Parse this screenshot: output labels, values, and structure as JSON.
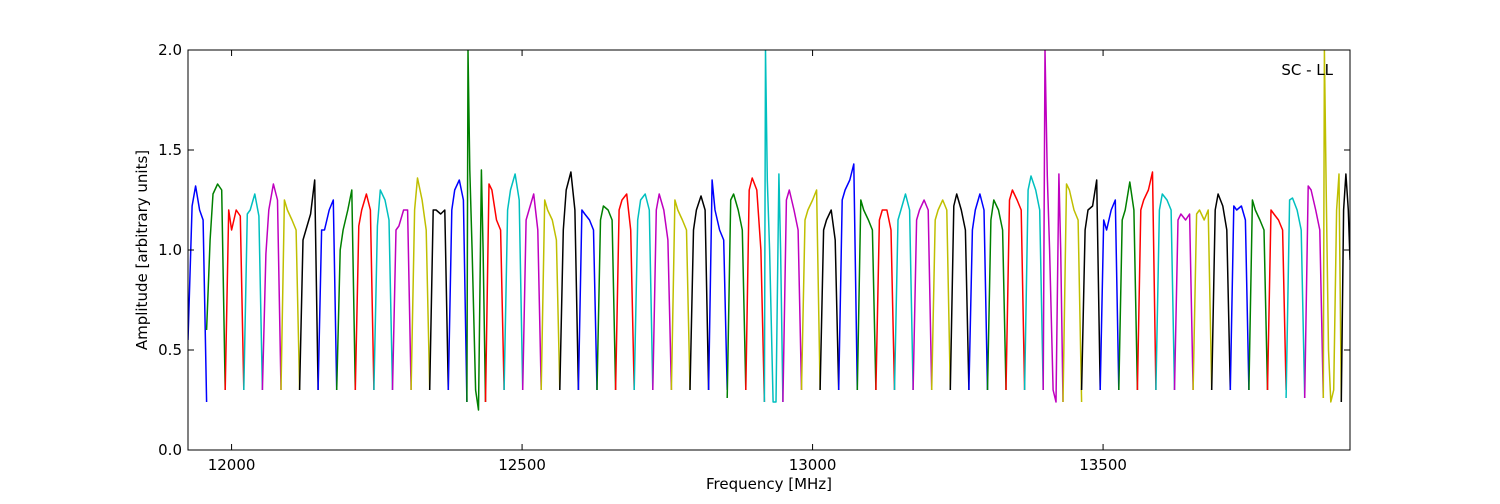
{
  "chart_data": {
    "type": "line",
    "title": "",
    "xlabel": "Frequency [MHz]",
    "ylabel": "Amplitude [arbitrary units]",
    "annotation": "SC - LL",
    "xlim": [
      11925,
      13925
    ],
    "ylim": [
      0.0,
      2.0
    ],
    "xticks": [
      12000,
      12500,
      13000,
      13500
    ],
    "xtick_labels": [
      "12000",
      "12500",
      "13000",
      "13500"
    ],
    "yticks": [
      0.0,
      0.5,
      1.0,
      1.5,
      2.0
    ],
    "ytick_labels": [
      "0.0",
      "0.5",
      "1.0",
      "1.5",
      "2.0"
    ],
    "grid": false,
    "legend": "none",
    "color_cycle": [
      "#0000ff",
      "#008000",
      "#ff0000",
      "#00bfbf",
      "#bf00bf",
      "#bfbf00",
      "#000000"
    ],
    "channel_width_mhz": 32,
    "series": [
      {
        "x": [
          11925,
          11932,
          11938,
          11945,
          11951,
          11957
        ],
        "y": [
          0.55,
          1.22,
          1.32,
          1.2,
          1.15,
          0.24
        ]
      },
      {
        "x": [
          11957,
          11963,
          11968,
          11976,
          11983,
          11989
        ],
        "y": [
          0.6,
          1.05,
          1.28,
          1.33,
          1.3,
          0.3
        ]
      },
      {
        "x": [
          11989,
          11995,
          12000,
          12008,
          12015,
          12021
        ],
        "y": [
          0.3,
          1.2,
          1.1,
          1.2,
          1.17,
          0.3
        ]
      },
      {
        "x": [
          12021,
          12027,
          12032,
          12040,
          12047,
          12053
        ],
        "y": [
          0.3,
          1.18,
          1.2,
          1.28,
          1.17,
          0.3
        ]
      },
      {
        "x": [
          12053,
          12059,
          12064,
          12072,
          12079,
          12085
        ],
        "y": [
          0.3,
          0.98,
          1.2,
          1.33,
          1.25,
          0.3
        ]
      },
      {
        "x": [
          12085,
          12091,
          12096,
          12104,
          12111,
          12117
        ],
        "y": [
          0.3,
          1.25,
          1.2,
          1.15,
          1.1,
          0.3
        ]
      },
      {
        "x": [
          12117,
          12123,
          12128,
          12136,
          12143,
          12149
        ],
        "y": [
          0.3,
          1.05,
          1.1,
          1.18,
          1.35,
          0.3
        ]
      },
      {
        "x": [
          12149,
          12155,
          12160,
          12168,
          12175,
          12181
        ],
        "y": [
          0.3,
          1.1,
          1.1,
          1.2,
          1.25,
          0.3
        ]
      },
      {
        "x": [
          12181,
          12187,
          12192,
          12200,
          12207,
          12213
        ],
        "y": [
          0.3,
          1.0,
          1.1,
          1.2,
          1.3,
          0.3
        ]
      },
      {
        "x": [
          12213,
          12219,
          12224,
          12232,
          12239,
          12245
        ],
        "y": [
          0.3,
          1.12,
          1.2,
          1.28,
          1.2,
          0.3
        ]
      },
      {
        "x": [
          12245,
          12251,
          12256,
          12264,
          12271,
          12277
        ],
        "y": [
          0.3,
          1.12,
          1.3,
          1.25,
          1.15,
          0.3
        ]
      },
      {
        "x": [
          12277,
          12283,
          12288,
          12296,
          12303,
          12309
        ],
        "y": [
          0.3,
          1.1,
          1.12,
          1.2,
          1.2,
          0.3
        ]
      },
      {
        "x": [
          12309,
          12315,
          12320,
          12328,
          12335,
          12341
        ],
        "y": [
          0.3,
          1.2,
          1.36,
          1.25,
          1.1,
          0.3
        ]
      },
      {
        "x": [
          12341,
          12347,
          12352,
          12360,
          12367,
          12373
        ],
        "y": [
          0.3,
          1.2,
          1.2,
          1.18,
          1.2,
          0.3
        ]
      },
      {
        "x": [
          12373,
          12379,
          12384,
          12392,
          12399,
          12405
        ],
        "y": [
          0.3,
          1.2,
          1.3,
          1.35,
          1.25,
          0.24
        ]
      },
      {
        "x": [
          12405,
          12407,
          12410,
          12414,
          12420,
          12425,
          12430,
          12433,
          12437
        ],
        "y": [
          0.24,
          2.0,
          1.4,
          1.0,
          0.3,
          0.2,
          1.4,
          1.0,
          0.24
        ]
      },
      {
        "x": [
          12437,
          12443,
          12448,
          12456,
          12463,
          12469
        ],
        "y": [
          0.24,
          1.33,
          1.3,
          1.15,
          1.1,
          0.3
        ]
      },
      {
        "x": [
          12469,
          12475,
          12480,
          12488,
          12495,
          12501
        ],
        "y": [
          0.3,
          1.2,
          1.3,
          1.38,
          1.25,
          0.3
        ]
      },
      {
        "x": [
          12501,
          12507,
          12512,
          12520,
          12527,
          12533
        ],
        "y": [
          0.3,
          1.15,
          1.2,
          1.28,
          1.1,
          0.3
        ]
      },
      {
        "x": [
          12533,
          12539,
          12544,
          12552,
          12559,
          12565
        ],
        "y": [
          0.3,
          1.25,
          1.2,
          1.15,
          1.05,
          0.3
        ]
      },
      {
        "x": [
          12565,
          12571,
          12576,
          12584,
          12591,
          12597
        ],
        "y": [
          0.3,
          1.1,
          1.3,
          1.39,
          1.2,
          0.3
        ]
      },
      {
        "x": [
          12597,
          12603,
          12608,
          12616,
          12623,
          12629
        ],
        "y": [
          0.3,
          1.2,
          1.18,
          1.15,
          1.1,
          0.3
        ]
      },
      {
        "x": [
          12629,
          12635,
          12640,
          12648,
          12655,
          12661
        ],
        "y": [
          0.3,
          1.15,
          1.22,
          1.2,
          1.15,
          0.3
        ]
      },
      {
        "x": [
          12661,
          12667,
          12672,
          12680,
          12687,
          12693
        ],
        "y": [
          0.3,
          1.2,
          1.25,
          1.28,
          1.1,
          0.3
        ]
      },
      {
        "x": [
          12693,
          12699,
          12704,
          12712,
          12719,
          12725
        ],
        "y": [
          0.3,
          1.15,
          1.25,
          1.28,
          1.2,
          0.3
        ]
      },
      {
        "x": [
          12725,
          12731,
          12736,
          12744,
          12751,
          12757
        ],
        "y": [
          0.3,
          1.2,
          1.28,
          1.2,
          1.05,
          0.3
        ]
      },
      {
        "x": [
          12757,
          12763,
          12768,
          12776,
          12783,
          12789
        ],
        "y": [
          0.3,
          1.25,
          1.2,
          1.15,
          1.1,
          0.3
        ]
      },
      {
        "x": [
          12789,
          12795,
          12800,
          12808,
          12815,
          12821
        ],
        "y": [
          0.3,
          1.1,
          1.2,
          1.27,
          1.2,
          0.3
        ]
      },
      {
        "x": [
          12821,
          12827,
          12832,
          12840,
          12847,
          12853
        ],
        "y": [
          0.3,
          1.35,
          1.2,
          1.1,
          1.05,
          0.3
        ]
      },
      {
        "x": [
          12853,
          12859,
          12864,
          12872,
          12879,
          12885
        ],
        "y": [
          0.26,
          1.25,
          1.28,
          1.2,
          1.1,
          0.3
        ]
      },
      {
        "x": [
          12885,
          12891,
          12896,
          12904,
          12911,
          12917
        ],
        "y": [
          0.3,
          1.3,
          1.36,
          1.3,
          1.0,
          0.24
        ]
      },
      {
        "x": [
          12917,
          12919,
          12922,
          12926,
          12932,
          12937,
          12942,
          12945,
          12949
        ],
        "y": [
          0.24,
          2.0,
          1.35,
          1.0,
          0.24,
          0.24,
          1.38,
          1.0,
          0.24
        ]
      },
      {
        "x": [
          12949,
          12955,
          12960,
          12968,
          12975,
          12981
        ],
        "y": [
          0.24,
          1.25,
          1.3,
          1.2,
          1.1,
          0.3
        ]
      },
      {
        "x": [
          12981,
          12987,
          12992,
          13000,
          13007,
          13013
        ],
        "y": [
          0.3,
          1.15,
          1.2,
          1.25,
          1.3,
          0.3
        ]
      },
      {
        "x": [
          13013,
          13019,
          13024,
          13032,
          13039,
          13045
        ],
        "y": [
          0.3,
          1.1,
          1.15,
          1.2,
          1.05,
          0.3
        ]
      },
      {
        "x": [
          13045,
          13051,
          13056,
          13064,
          13071,
          13077
        ],
        "y": [
          0.3,
          1.25,
          1.3,
          1.35,
          1.43,
          0.3
        ]
      },
      {
        "x": [
          13077,
          13083,
          13088,
          13096,
          13103,
          13109
        ],
        "y": [
          0.3,
          1.25,
          1.2,
          1.15,
          1.1,
          0.3
        ]
      },
      {
        "x": [
          13109,
          13115,
          13120,
          13128,
          13135,
          13141
        ],
        "y": [
          0.3,
          1.15,
          1.2,
          1.2,
          1.1,
          0.3
        ]
      },
      {
        "x": [
          13141,
          13147,
          13152,
          13160,
          13167,
          13173
        ],
        "y": [
          0.3,
          1.15,
          1.2,
          1.28,
          1.2,
          0.3
        ]
      },
      {
        "x": [
          13173,
          13179,
          13184,
          13192,
          13199,
          13205
        ],
        "y": [
          0.3,
          1.15,
          1.2,
          1.25,
          1.2,
          0.3
        ]
      },
      {
        "x": [
          13205,
          13211,
          13216,
          13224,
          13231,
          13237
        ],
        "y": [
          0.3,
          1.15,
          1.2,
          1.25,
          1.2,
          0.3
        ]
      },
      {
        "x": [
          13237,
          13243,
          13248,
          13256,
          13263,
          13269
        ],
        "y": [
          0.3,
          1.22,
          1.28,
          1.2,
          1.1,
          0.3
        ]
      },
      {
        "x": [
          13269,
          13275,
          13280,
          13288,
          13295,
          13301
        ],
        "y": [
          0.3,
          1.1,
          1.2,
          1.28,
          1.2,
          0.3
        ]
      },
      {
        "x": [
          13301,
          13307,
          13312,
          13320,
          13327,
          13333
        ],
        "y": [
          0.3,
          1.15,
          1.25,
          1.2,
          1.1,
          0.3
        ]
      },
      {
        "x": [
          13333,
          13339,
          13344,
          13352,
          13359,
          13365
        ],
        "y": [
          0.3,
          1.25,
          1.3,
          1.25,
          1.2,
          0.3
        ]
      },
      {
        "x": [
          13365,
          13371,
          13376,
          13384,
          13391,
          13397
        ],
        "y": [
          0.3,
          1.3,
          1.37,
          1.3,
          1.2,
          0.3
        ]
      },
      {
        "x": [
          13397,
          13400,
          13404,
          13408,
          13414,
          13419,
          13424,
          13427,
          13431
        ],
        "y": [
          0.3,
          2.0,
          1.37,
          1.0,
          0.3,
          0.24,
          1.38,
          1.0,
          0.24
        ]
      },
      {
        "x": [
          13431,
          13437,
          13442,
          13450,
          13457,
          13463
        ],
        "y": [
          0.24,
          1.33,
          1.3,
          1.2,
          1.15,
          0.24
        ]
      },
      {
        "x": [
          13463,
          13469,
          13474,
          13482,
          13489,
          13495
        ],
        "y": [
          0.3,
          1.1,
          1.2,
          1.22,
          1.35,
          0.3
        ]
      },
      {
        "x": [
          13495,
          13501,
          13506,
          13514,
          13521,
          13527
        ],
        "y": [
          0.3,
          1.15,
          1.1,
          1.2,
          1.25,
          0.3
        ]
      },
      {
        "x": [
          13527,
          13533,
          13538,
          13546,
          13553,
          13559
        ],
        "y": [
          0.3,
          1.15,
          1.2,
          1.34,
          1.2,
          0.3
        ]
      },
      {
        "x": [
          13559,
          13565,
          13570,
          13578,
          13585,
          13591
        ],
        "y": [
          0.3,
          1.2,
          1.25,
          1.3,
          1.39,
          0.3
        ]
      },
      {
        "x": [
          13591,
          13597,
          13602,
          13610,
          13617,
          13623
        ],
        "y": [
          0.3,
          1.2,
          1.28,
          1.25,
          1.2,
          0.3
        ]
      },
      {
        "x": [
          13623,
          13629,
          13634,
          13642,
          13649,
          13655
        ],
        "y": [
          0.3,
          1.15,
          1.18,
          1.15,
          1.18,
          0.3
        ]
      },
      {
        "x": [
          13655,
          13661,
          13666,
          13674,
          13681,
          13687
        ],
        "y": [
          0.3,
          1.18,
          1.2,
          1.15,
          1.2,
          0.3
        ]
      },
      {
        "x": [
          13687,
          13693,
          13698,
          13706,
          13713,
          13719
        ],
        "y": [
          0.3,
          1.2,
          1.28,
          1.22,
          1.1,
          0.3
        ]
      },
      {
        "x": [
          13719,
          13725,
          13730,
          13738,
          13745,
          13751
        ],
        "y": [
          0.3,
          1.22,
          1.2,
          1.22,
          1.15,
          0.3
        ]
      },
      {
        "x": [
          13751,
          13757,
          13762,
          13770,
          13777,
          13783
        ],
        "y": [
          0.3,
          1.25,
          1.2,
          1.15,
          1.1,
          0.3
        ]
      },
      {
        "x": [
          13783,
          13789,
          13794,
          13802,
          13809,
          13815
        ],
        "y": [
          0.3,
          1.2,
          1.18,
          1.15,
          1.1,
          0.3
        ]
      },
      {
        "x": [
          13815,
          13821,
          13826,
          13834,
          13841,
          13847
        ],
        "y": [
          0.26,
          1.25,
          1.26,
          1.2,
          1.1,
          0.26
        ]
      },
      {
        "x": [
          13847,
          13853,
          13858,
          13866,
          13873,
          13879
        ],
        "y": [
          0.26,
          1.32,
          1.3,
          1.2,
          1.1,
          0.26
        ]
      },
      {
        "x": [
          13879,
          13881,
          13884,
          13888,
          13892,
          13897,
          13902,
          13906,
          13910
        ],
        "y": [
          0.26,
          2.0,
          1.3,
          0.5,
          0.24,
          0.3,
          1.2,
          1.38,
          0.24
        ]
      },
      {
        "x": [
          13910,
          13914,
          13918,
          13922,
          13925
        ],
        "y": [
          0.24,
          1.2,
          1.38,
          1.2,
          0.95
        ]
      }
    ]
  }
}
